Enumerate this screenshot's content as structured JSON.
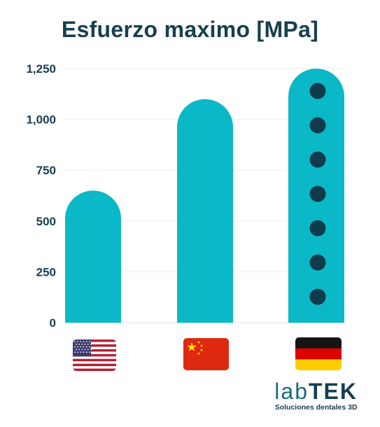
{
  "title": "Esfuerzo maximo  [MPa]",
  "brand": {
    "lab": "lab",
    "tek": "TEK",
    "tagline": "Soluciones dentales 3D"
  },
  "colors": {
    "bar": "#0bb8c7",
    "dot": "#0f3c4c",
    "text": "#173f4f",
    "grid": "#eeeeee"
  },
  "chart_data": {
    "type": "bar",
    "categories": [
      "United States",
      "China",
      "Germany"
    ],
    "category_icons": [
      "us-flag-icon",
      "china-flag-icon",
      "germany-flag-icon"
    ],
    "values": [
      650,
      1100,
      1250
    ],
    "ylim": [
      0,
      1250
    ],
    "yticks": [
      0,
      250,
      500,
      750,
      1000,
      1250
    ],
    "ytick_labels": [
      "0",
      "250",
      "500",
      "750",
      "1,000",
      "1,250"
    ],
    "grid": true,
    "highlight_dots": {
      "category": "Germany",
      "count": 7
    }
  }
}
